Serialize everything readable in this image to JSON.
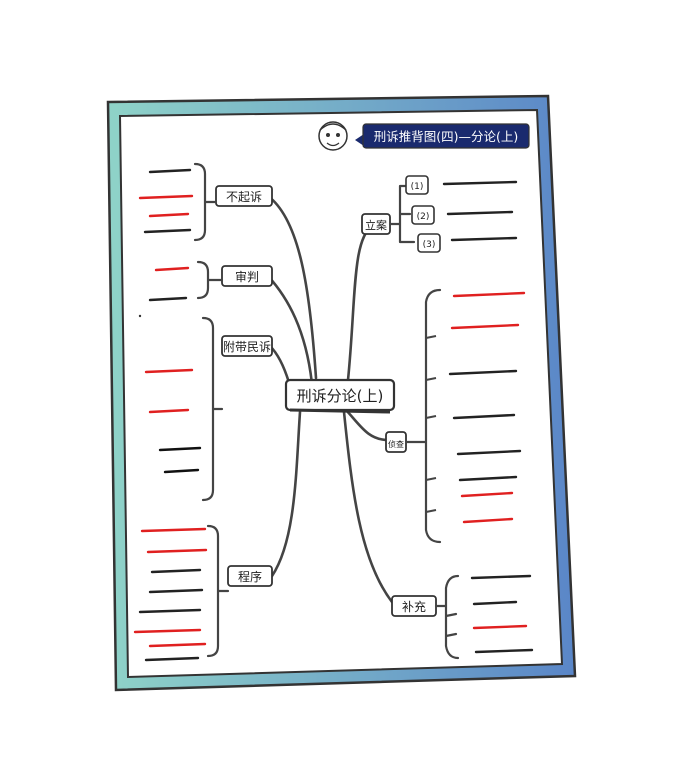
{
  "header": {
    "title": "刑诉推背图(四)—分论(上)"
  },
  "center": {
    "label": "刑诉分论(上)"
  },
  "left_branches": [
    {
      "label": "不起诉",
      "line_colors": [
        "#222",
        "#e02020",
        "#e02020",
        "#222"
      ]
    },
    {
      "label": "审判",
      "line_colors": [
        "#e02020",
        "#222"
      ]
    },
    {
      "label": "附带民诉",
      "line_colors": [
        "#e02020",
        "#e02020",
        "#111",
        "#111"
      ]
    },
    {
      "label": "程序",
      "line_colors": [
        "#e02020",
        "#e02020",
        "#222",
        "#222",
        "#222",
        "#e02020",
        "#e02020",
        "#222"
      ]
    }
  ],
  "right_branches": [
    {
      "label": "立案",
      "sub_labels": [
        "(1)",
        "(2)",
        "(3)"
      ],
      "line_colors": [
        "#222",
        "#222",
        "#222"
      ]
    },
    {
      "label": "侦查",
      "line_colors": [
        "#e02020",
        "#e02020",
        "#222",
        "#222",
        "#222",
        "#222",
        "#e02020",
        "#e02020"
      ]
    },
    {
      "label": "补充",
      "line_colors": [
        "#222",
        "#222",
        "#e02020",
        "#222"
      ]
    }
  ],
  "colors": {
    "frame_left": "#8fd3c8",
    "frame_right": "#5a86c8",
    "header_bg": "#1a2a6e",
    "accent_red": "#e02020",
    "ink": "#333333"
  }
}
